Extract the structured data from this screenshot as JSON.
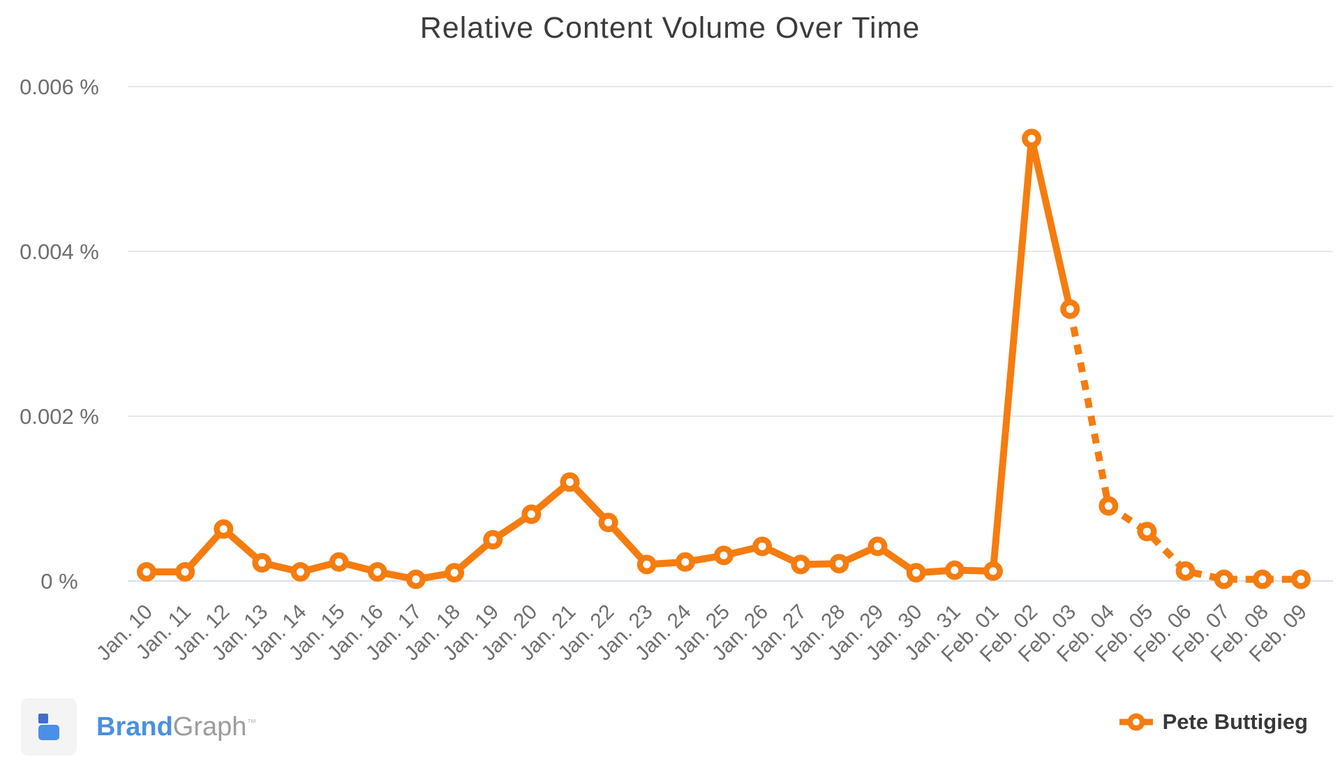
{
  "title": "Relative Content Volume Over Time",
  "legend": {
    "label": "Pete Buttigieg"
  },
  "brand": {
    "name_primary": "Brand",
    "name_secondary": "Graph",
    "trademark": "™"
  },
  "colors": {
    "series": "#f57c0f",
    "gridline": "#e8e8e8",
    "zero_line": "#d9deea",
    "axis_text": "#6e6e6e",
    "title_text": "#3b3b3b"
  },
  "chart_data": {
    "type": "line",
    "title": "Relative Content Volume Over Time",
    "xlabel": "",
    "ylabel": "",
    "grid": true,
    "legend_position": "bottom-right",
    "ylim": [
      0,
      0.006
    ],
    "yticks": [
      0,
      0.002,
      0.004,
      0.006
    ],
    "ytick_labels": [
      "0 %",
      "0.002 %",
      "0.004 %",
      "0.006 %"
    ],
    "y_unit": "percent",
    "categories": [
      "Jan. 10",
      "Jan. 11",
      "Jan. 12",
      "Jan. 13",
      "Jan. 14",
      "Jan. 15",
      "Jan. 16",
      "Jan. 17",
      "Jan. 18",
      "Jan. 19",
      "Jan. 20",
      "Jan. 21",
      "Jan. 22",
      "Jan. 23",
      "Jan. 24",
      "Jan. 25",
      "Jan. 26",
      "Jan. 27",
      "Jan. 28",
      "Jan. 29",
      "Jan. 30",
      "Jan. 31",
      "Feb. 01",
      "Feb. 02",
      "Feb. 03",
      "Feb. 04",
      "Feb. 05",
      "Feb. 06",
      "Feb. 07",
      "Feb. 08",
      "Feb. 09"
    ],
    "series": [
      {
        "name": "Pete Buttigieg",
        "color": "#f57c0f",
        "marker": "ring",
        "dashed_from_index": 24,
        "values": [
          0.00011,
          0.00011,
          0.00063,
          0.00022,
          0.00011,
          0.00023,
          0.00011,
          2e-05,
          0.0001,
          0.0005,
          0.00081,
          0.0012,
          0.00071,
          0.0002,
          0.00023,
          0.00031,
          0.00042,
          0.0002,
          0.00021,
          0.00042,
          0.0001,
          0.00013,
          0.00012,
          0.00537,
          0.0033,
          0.00091,
          0.0006,
          0.00012,
          2e-05,
          2e-05,
          2e-05
        ]
      }
    ]
  }
}
